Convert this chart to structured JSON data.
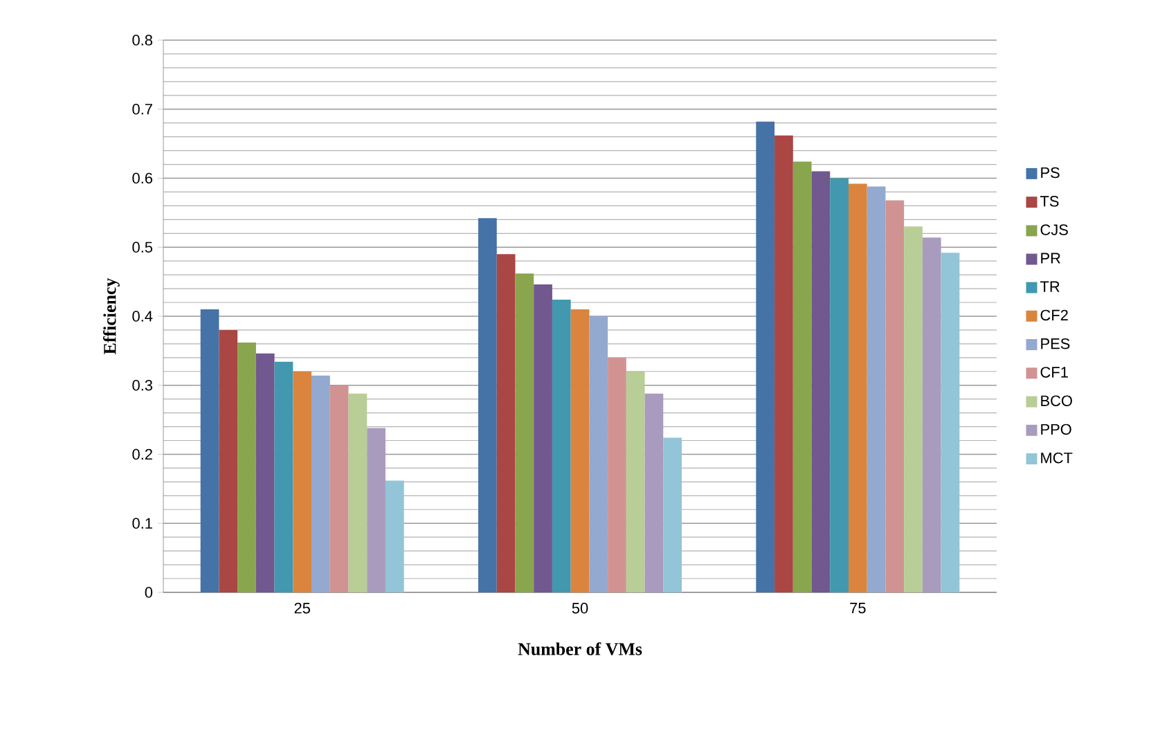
{
  "chart_data": {
    "type": "bar",
    "xlabel": "Number of VMs",
    "ylabel": "Efficiency",
    "categories": [
      "25",
      "50",
      "75"
    ],
    "series": [
      {
        "name": "PS",
        "color": "#4572a7",
        "values": [
          0.41,
          0.542,
          0.682
        ]
      },
      {
        "name": "TS",
        "color": "#aa4643",
        "values": [
          0.38,
          0.49,
          0.662
        ]
      },
      {
        "name": "CJS",
        "color": "#89a54e",
        "values": [
          0.362,
          0.462,
          0.624
        ]
      },
      {
        "name": "PR",
        "color": "#71588f",
        "values": [
          0.346,
          0.446,
          0.61
        ]
      },
      {
        "name": "TR",
        "color": "#4198af",
        "values": [
          0.334,
          0.424,
          0.6
        ]
      },
      {
        "name": "CF2",
        "color": "#db843d",
        "values": [
          0.32,
          0.41,
          0.592
        ]
      },
      {
        "name": "PES",
        "color": "#93a9cf",
        "values": [
          0.314,
          0.4,
          0.588
        ]
      },
      {
        "name": "CF1",
        "color": "#d19392",
        "values": [
          0.3,
          0.34,
          0.568
        ]
      },
      {
        "name": "BCO",
        "color": "#b9cd96",
        "values": [
          0.288,
          0.32,
          0.53
        ]
      },
      {
        "name": "PPO",
        "color": "#a99bbd",
        "values": [
          0.238,
          0.288,
          0.514
        ]
      },
      {
        "name": "MCT",
        "color": "#92c5d8",
        "values": [
          0.162,
          0.224,
          0.492
        ]
      }
    ],
    "ylim": [
      0,
      0.8
    ],
    "yticks": [
      0,
      0.1,
      0.2,
      0.3,
      0.4,
      0.5,
      0.6,
      0.7,
      0.8
    ],
    "grid": "y",
    "legend": "right"
  }
}
